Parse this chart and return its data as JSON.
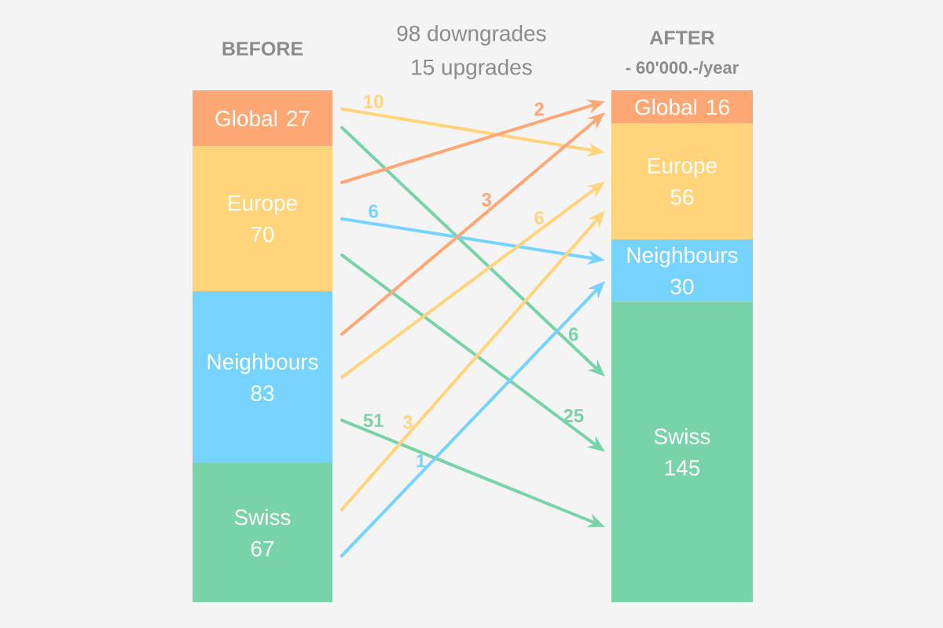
{
  "chart_data": {
    "type": "other",
    "data_labels": true,
    "categories": [
      "Global",
      "Europe",
      "Neighbours",
      "Swiss"
    ],
    "series": [
      {
        "name": "BEFORE",
        "colors": [
          "#fda874",
          "#ffd47a",
          "#76d3fd",
          "#79d3a8"
        ],
        "values": [
          27,
          70,
          83,
          67
        ]
      },
      {
        "name": "AFTER",
        "colors": [
          "#fda874",
          "#ffd47a",
          "#76d3fd",
          "#79d3a8"
        ],
        "values": [
          16,
          56,
          30,
          145
        ]
      }
    ],
    "cell_labels": [
      [
        null,
        "10",
        null,
        "6"
      ],
      [
        "2",
        null,
        "6",
        "25"
      ],
      [
        "3",
        "6",
        null,
        "51"
      ],
      [
        null,
        "3",
        "1",
        null
      ]
    ],
    "annotations": [
      "98 downgrades",
      "15 upgrades",
      "- 60'000.-/year"
    ]
  }
}
